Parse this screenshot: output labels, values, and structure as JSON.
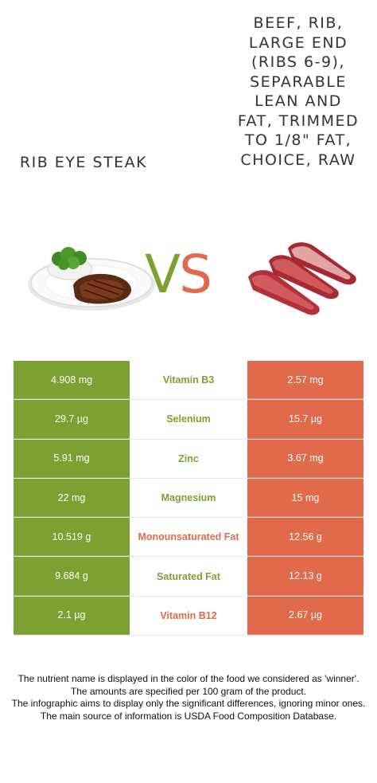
{
  "left_food": {
    "name": "Rib eye steak",
    "image": "steak-plate-icon",
    "color": "#7aa132"
  },
  "right_food": {
    "name": "Beef, rib, large end (ribs 6-9), separable lean and fat, trimmed to 1/8\" fat, choice, raw",
    "image": "raw-beef-ribs-icon",
    "color": "#e06a4b"
  },
  "vs": {
    "v": "V",
    "s": "S"
  },
  "rows": [
    {
      "left": "4.908 mg",
      "nutrient": "Vitamin B3",
      "right": "2.57 mg",
      "winner": "left"
    },
    {
      "left": "29.7 µg",
      "nutrient": "Selenium",
      "right": "15.7 µg",
      "winner": "left"
    },
    {
      "left": "5.91 mg",
      "nutrient": "Zinc",
      "right": "3.67 mg",
      "winner": "left"
    },
    {
      "left": "22 mg",
      "nutrient": "Magnesium",
      "right": "15 mg",
      "winner": "left"
    },
    {
      "left": "10.519 g",
      "nutrient": "Monounsaturated Fat",
      "right": "12.56 g",
      "winner": "right"
    },
    {
      "left": "9.684 g",
      "nutrient": "Saturated Fat",
      "right": "12.13 g",
      "winner": "left"
    },
    {
      "left": "2.1 µg",
      "nutrient": "Vitamin B12",
      "right": "2.67 µg",
      "winner": "right"
    }
  ],
  "footer": {
    "line1": "The nutrient name is displayed in the color of the food we considered as 'winner'.",
    "line2": "The amounts are specified per 100 gram of the product.",
    "line3": "The infographic aims to display only the significant differences, ignoring minor ones.",
    "line4": "The main source of information is USDA Food Composition Database."
  }
}
